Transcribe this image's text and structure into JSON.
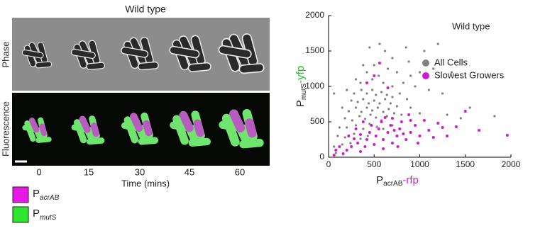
{
  "figure": {
    "title": "Wild type",
    "rows": [
      "Phase",
      "Fluorescence"
    ],
    "times": [
      "0",
      "15",
      "30",
      "45",
      "60"
    ],
    "time_label": "Time (mins)",
    "legend": [
      {
        "prefix": "P",
        "subscript": "acrAB",
        "color": "#e619e6"
      },
      {
        "prefix": "P",
        "subscript": "mutS",
        "color": "#2ee62e"
      }
    ]
  },
  "chart_data": {
    "type": "scatter",
    "title": "Wild type",
    "xlabel": {
      "prefix": "P",
      "subscript": "acrAB",
      "suffix": "-rfp",
      "suffix_color": "#d21ad2"
    },
    "ylabel": {
      "prefix": "P",
      "subscript": "mutS",
      "suffix": "-yfp",
      "suffix_color": "#1fc21f"
    },
    "xlim": [
      0,
      2000
    ],
    "ylim": [
      0,
      2000
    ],
    "xticks": [
      0,
      500,
      1000,
      1500,
      2000
    ],
    "yticks": [
      0,
      500,
      1000,
      1500,
      2000
    ],
    "legend": "upper right",
    "series": [
      {
        "name": "All Cells",
        "color": "#808080",
        "x": [
          450,
          560,
          620,
          700,
          880,
          1050,
          1200,
          380,
          500,
          420,
          650,
          750,
          900,
          300,
          350,
          480,
          550,
          600,
          700,
          820,
          950,
          1100,
          1250,
          200,
          280,
          360,
          420,
          480,
          520,
          580,
          640,
          700,
          780,
          860,
          250,
          320,
          380,
          440,
          500,
          560,
          620,
          680,
          750,
          900,
          150,
          220,
          300,
          360,
          420,
          480,
          540,
          600,
          660,
          720,
          800,
          1000,
          180,
          260,
          340,
          400,
          460,
          520,
          580,
          640,
          120,
          200,
          300,
          380,
          450,
          530,
          600,
          700,
          100,
          180,
          280,
          350,
          430,
          60,
          150,
          240,
          80,
          1300,
          1450,
          1550,
          1820,
          1350,
          1150,
          60,
          1000,
          850
        ],
        "values": [
          1550,
          1600,
          1500,
          1400,
          1350,
          1500,
          1600,
          1300,
          1300,
          1200,
          1250,
          1200,
          1150,
          1100,
          1050,
          1100,
          1150,
          1050,
          1000,
          1050,
          1000,
          950,
          900,
          950,
          900,
          950,
          900,
          950,
          880,
          920,
          880,
          850,
          900,
          820,
          800,
          780,
          820,
          760,
          800,
          760,
          820,
          760,
          720,
          700,
          700,
          650,
          700,
          640,
          700,
          660,
          700,
          640,
          680,
          620,
          600,
          620,
          550,
          520,
          580,
          540,
          600,
          560,
          520,
          580,
          420,
          420,
          450,
          400,
          470,
          430,
          400,
          450,
          300,
          280,
          330,
          260,
          300,
          150,
          180,
          200,
          60,
          600,
          550,
          700,
          580,
          1200,
          1250,
          900,
          1200,
          1550
        ]
      },
      {
        "name": "Slowest Growers",
        "color": "#d21ad2",
        "x": [
          420,
          500,
          560,
          650,
          1500,
          1650,
          1960,
          1300,
          1400,
          1200,
          1100,
          1000,
          950,
          900,
          850,
          800,
          780,
          750,
          700,
          680,
          650,
          600,
          580,
          550,
          520,
          500,
          470,
          450,
          420,
          400,
          380,
          350,
          320,
          300,
          280,
          250,
          220,
          200,
          160,
          120,
          80,
          60,
          700,
          620,
          880,
          1050,
          1150,
          1250,
          980,
          760,
          600,
          350,
          900,
          820,
          720
        ],
        "values": [
          1050,
          1150,
          1330,
          980,
          650,
          380,
          310,
          300,
          430,
          480,
          380,
          300,
          450,
          350,
          250,
          500,
          400,
          300,
          200,
          450,
          350,
          250,
          500,
          400,
          300,
          180,
          450,
          350,
          250,
          150,
          500,
          320,
          200,
          400,
          260,
          150,
          300,
          100,
          50,
          150,
          100,
          30,
          550,
          560,
          600,
          520,
          280,
          420,
          200,
          150,
          120,
          80,
          520,
          330,
          380
        ]
      }
    ]
  }
}
